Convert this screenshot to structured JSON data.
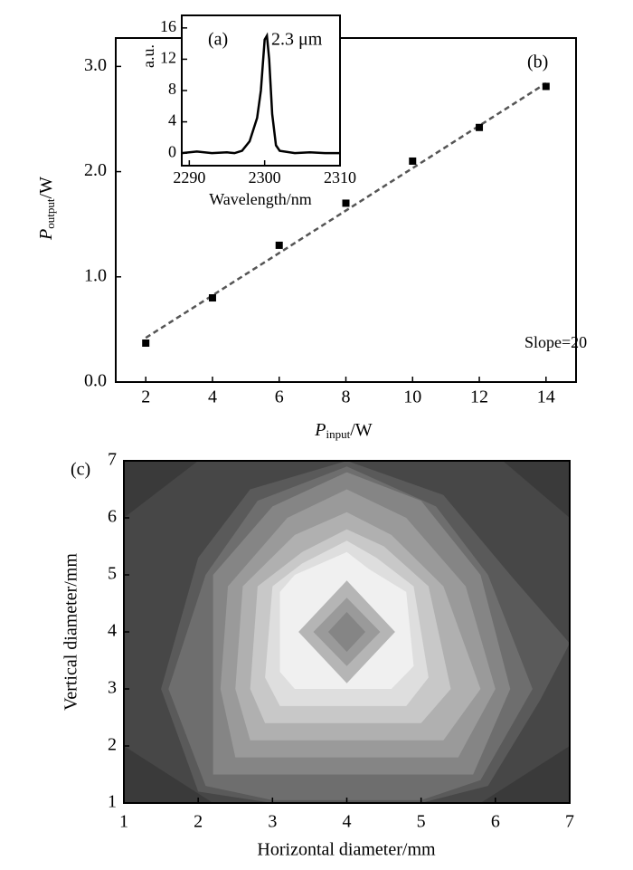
{
  "chart_data": [
    {
      "type": "scatter",
      "annotation": "(b)",
      "note": "Slope=20",
      "x_label": {
        "main": "P",
        "sub": "input",
        "unit": "/W"
      },
      "y_label": {
        "main": "P",
        "sub": "output",
        "unit": "/W"
      },
      "x": [
        2,
        4,
        6,
        8,
        10,
        12,
        14
      ],
      "values": [
        0.37,
        0.8,
        1.3,
        1.7,
        2.1,
        2.42,
        2.81
      ],
      "color": "#000000",
      "fit": {
        "x": [
          2,
          14
        ],
        "y": [
          0.42,
          2.84
        ],
        "color": "#555555"
      },
      "xlim": [
        1.1,
        14.9
      ],
      "xticks": [
        2,
        4,
        6,
        8,
        10,
        12,
        14
      ],
      "ylim": [
        0,
        3.27
      ],
      "yticks": [
        {
          "value": 0,
          "label": "0.0"
        },
        {
          "value": 1,
          "label": "1.0"
        },
        {
          "value": 2,
          "label": "2.0"
        },
        {
          "value": 3,
          "label": "3.0"
        }
      ]
    },
    {
      "type": "line",
      "annotation": "(a)",
      "note": "2.3 μm",
      "x_label": "Wavelength/nm",
      "y_label": "a.u.",
      "x": [
        2289,
        2291,
        2293,
        2295,
        2296,
        2297,
        2298,
        2298.5,
        2299,
        2299.5,
        2300,
        2300.3,
        2300.6,
        2301,
        2301.5,
        2302,
        2304,
        2306,
        2308,
        2310
      ],
      "values": [
        0,
        0.2,
        0,
        0.1,
        0,
        0.3,
        1.5,
        3,
        4.5,
        8,
        14.5,
        15,
        12,
        5,
        1,
        0.3,
        0,
        0.1,
        0,
        0
      ],
      "color": "#000000",
      "xlim": [
        2289,
        2310
      ],
      "xticks": [
        2290,
        2300,
        2310
      ],
      "ylim": [
        -1.6,
        17.6
      ],
      "yticks": [
        0,
        4,
        8,
        12,
        16
      ]
    },
    {
      "type": "contour",
      "annotation": "(c)",
      "x_label": "Horizontal diameter/mm",
      "y_label": "Vertical diameter/mm",
      "background": "#474747",
      "xlim": [
        1,
        7
      ],
      "xticks": [
        1,
        2,
        3,
        4,
        5,
        6,
        7
      ],
      "ylim": [
        1,
        7
      ],
      "yticks": [
        1,
        2,
        3,
        4,
        5,
        6,
        7
      ],
      "contours": [
        {
          "color": "#3a3a3a",
          "x": [
            1,
            2,
            1
          ],
          "y": [
            7,
            7,
            6
          ]
        },
        {
          "color": "#3a3a3a",
          "x": [
            6.1,
            7,
            7
          ],
          "y": [
            7,
            7,
            6
          ]
        },
        {
          "color": "#3a3a3a",
          "x": [
            1,
            2.2,
            1
          ],
          "y": [
            1,
            1,
            2
          ]
        },
        {
          "color": "#3a3a3a",
          "x": [
            5.8,
            7,
            7
          ],
          "y": [
            1,
            1,
            2
          ]
        },
        {
          "color": "#5a5a5a",
          "x": [
            2,
            3,
            5,
            5.9,
            6.6,
            7,
            6.2,
            5.3,
            4,
            2.7,
            2,
            1.5
          ],
          "y": [
            1.2,
            1,
            1,
            1.3,
            2.8,
            3.8,
            5,
            6.4,
            7,
            6.5,
            5.3,
            3
          ]
        },
        {
          "color": "#6e6e6e",
          "x": [
            2.1,
            3,
            5,
            5.8,
            6.5,
            5.9,
            5.2,
            4,
            2.8,
            2.1,
            1.6
          ],
          "y": [
            1.3,
            1.05,
            1.05,
            1.4,
            3,
            5,
            6.2,
            6.9,
            6.3,
            5,
            3
          ]
        },
        {
          "color": "#858585",
          "x": [
            2.2,
            5.7,
            6.2,
            5.8,
            5,
            4,
            3,
            2.2,
            2.2
          ],
          "y": [
            1.5,
            1.5,
            3,
            5,
            6.3,
            6.8,
            6.2,
            5,
            3
          ]
        },
        {
          "color": "#9a9a9a",
          "x": [
            2.5,
            5.5,
            6,
            5.6,
            4.8,
            4,
            3.2,
            2.4,
            2.3
          ],
          "y": [
            1.8,
            1.8,
            3,
            4.8,
            6,
            6.5,
            6,
            4.8,
            3
          ]
        },
        {
          "color": "#b0b0b0",
          "x": [
            2.7,
            5.3,
            5.8,
            5.3,
            4.6,
            4,
            3.3,
            2.6,
            2.5
          ],
          "y": [
            2.1,
            2.1,
            3,
            4.8,
            5.7,
            6.1,
            5.7,
            4.8,
            3
          ]
        },
        {
          "color": "#c8c8c8",
          "x": [
            2.9,
            5,
            5.4,
            5.1,
            4.5,
            4,
            3.4,
            2.8,
            2.7
          ],
          "y": [
            2.4,
            2.4,
            3,
            4.8,
            5.5,
            5.8,
            5.4,
            4.8,
            3
          ]
        },
        {
          "color": "#dedede",
          "x": [
            3.1,
            4.8,
            5.1,
            4.9,
            4.4,
            4,
            3.4,
            3,
            2.9
          ],
          "y": [
            2.7,
            2.7,
            3.2,
            4.8,
            5.3,
            5.6,
            5.2,
            4.8,
            3.2
          ]
        },
        {
          "color": "#f0f0f0",
          "x": [
            3.3,
            4.6,
            4.9,
            4.8,
            4.3,
            4,
            3.3,
            3.1,
            3.1
          ],
          "y": [
            3,
            3,
            3.4,
            4.7,
            5.1,
            5.4,
            5,
            4.7,
            3.3
          ]
        },
        {
          "color": "#b5b5b5",
          "x": [
            4,
            4.65,
            4,
            3.35
          ],
          "y": [
            4.9,
            4,
            3.1,
            4
          ]
        },
        {
          "color": "#9a9a9a",
          "x": [
            4,
            4.45,
            4,
            3.55
          ],
          "y": [
            4.6,
            4,
            3.4,
            4
          ]
        },
        {
          "color": "#858585",
          "x": [
            4,
            4.25,
            4,
            3.75
          ],
          "y": [
            4.35,
            4,
            3.65,
            4
          ]
        }
      ]
    }
  ]
}
